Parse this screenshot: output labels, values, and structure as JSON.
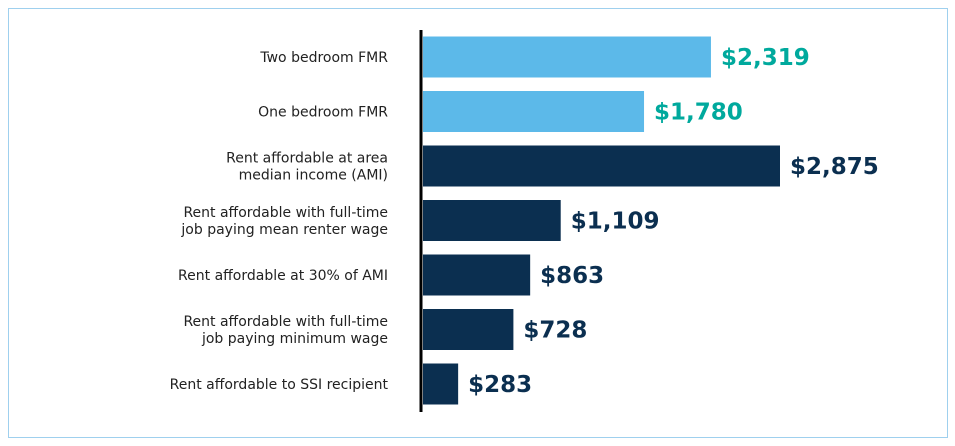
{
  "chart_data": {
    "type": "bar",
    "orientation": "horizontal",
    "categories": [
      "Two bedroom FMR",
      "One bedroom FMR",
      "Rent affordable at area\nmedian income (AMI)",
      "Rent affordable with full-time\njob paying mean renter wage",
      "Rent affordable at 30% of AMI",
      "Rent affordable with full-time\njob paying minimum wage",
      "Rent affordable to SSI recipient"
    ],
    "values": [
      2319,
      1780,
      2875,
      1109,
      863,
      728,
      283
    ],
    "value_labels": [
      "$2,319",
      "$1,780",
      "$2,875",
      "$1,109",
      "$863",
      "$728",
      "$283"
    ],
    "colors": [
      "#5cb9e9",
      "#5cb9e9",
      "#0b2f50",
      "#0b2f50",
      "#0b2f50",
      "#0b2f50",
      "#0b2f50"
    ],
    "label_colors": [
      "#00a99d",
      "#00a99d",
      "#0b2f50",
      "#0b2f50",
      "#0b2f50",
      "#0b2f50",
      "#0b2f50"
    ]
  }
}
